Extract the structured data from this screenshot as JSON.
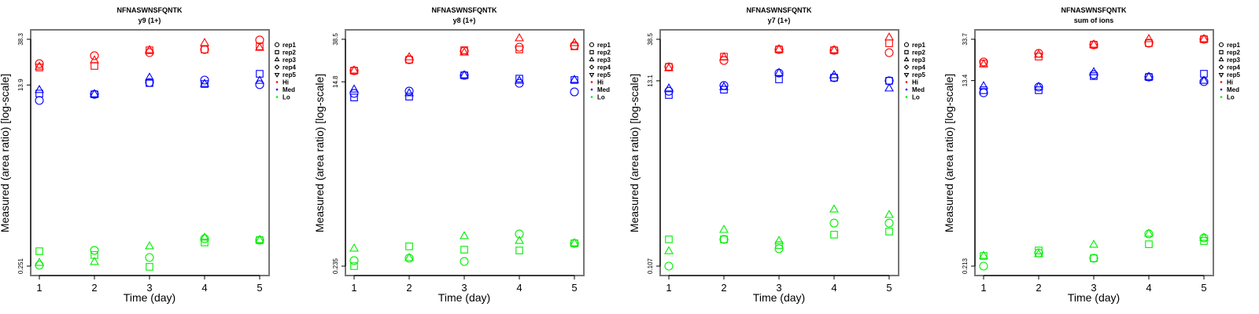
{
  "colors": {
    "Hi": "#ff0000",
    "Med": "#0000ff",
    "Lo": "#00ee00",
    "frame": "#777777"
  },
  "legend": {
    "reps": [
      {
        "label": "rep1",
        "shape": "circle"
      },
      {
        "label": "rep2",
        "shape": "square"
      },
      {
        "label": "rep3",
        "shape": "triangle-up"
      },
      {
        "label": "rep4",
        "shape": "diamond"
      },
      {
        "label": "rep5",
        "shape": "triangle-down"
      }
    ],
    "groups": [
      "Hi",
      "Med",
      "Lo"
    ]
  },
  "chart_data": [
    {
      "type": "scatter",
      "title": "NFNASWNSFQNTK",
      "subtitle": "y9 (1+)",
      "xlabel": "Time (day)",
      "ylabel": "Measured (area ratio) [log-scale]",
      "x": [
        1,
        2,
        3,
        4,
        5
      ],
      "xticks": [
        "1",
        "2",
        "3",
        "4",
        "5"
      ],
      "yscale": "log",
      "ylim": [
        0.251,
        38.3
      ],
      "yticks": [
        "0.251",
        "13.9",
        "38.3"
      ],
      "ytick_values": [
        0.251,
        13.9,
        38.3
      ],
      "legend_position": "right",
      "series": [
        {
          "group": "Hi",
          "rep": "rep1",
          "values": [
            22.3,
            26.6,
            28.5,
            30.5,
            37.7
          ]
        },
        {
          "group": "Hi",
          "rep": "rep2",
          "values": [
            20.5,
            21.2,
            30.0,
            30.5,
            32.7
          ]
        },
        {
          "group": "Hi",
          "rep": "rep3",
          "values": [
            20.8,
            23.9,
            30.0,
            35.1,
            31.6
          ]
        },
        {
          "group": "Med",
          "rep": "rep1",
          "values": [
            9.86,
            11.3,
            14.7,
            15.5,
            14.0
          ]
        },
        {
          "group": "Med",
          "rep": "rep2",
          "values": [
            11.5,
            11.3,
            14.5,
            14.2,
            17.8
          ]
        },
        {
          "group": "Med",
          "rep": "rep3",
          "values": [
            12.4,
            11.3,
            16.3,
            14.2,
            15.2
          ]
        },
        {
          "group": "Lo",
          "rep": "rep1",
          "values": [
            0.256,
            0.356,
            0.304,
            0.461,
            0.446
          ]
        },
        {
          "group": "Lo",
          "rep": "rep2",
          "values": [
            0.349,
            0.321,
            0.247,
            0.424,
            0.446
          ]
        },
        {
          "group": "Lo",
          "rep": "rep3",
          "values": [
            0.269,
            0.274,
            0.388,
            0.47,
            0.446
          ]
        }
      ]
    },
    {
      "type": "scatter",
      "title": "NFNASWNSFQNTK",
      "subtitle": "y8 (1+)",
      "xlabel": "Time (day)",
      "ylabel": "Measured (area ratio) [log-scale]",
      "x": [
        1,
        2,
        3,
        4,
        5
      ],
      "xticks": [
        "1",
        "2",
        "3",
        "4",
        "5"
      ],
      "yscale": "log",
      "ylim": [
        0.235,
        38.5
      ],
      "yticks": [
        "0.235",
        "14.8",
        "38.5"
      ],
      "ytick_values": [
        0.235,
        14.8,
        38.5
      ],
      "legend_position": "right",
      "series": [
        {
          "group": "Hi",
          "rep": "rep1",
          "values": [
            19.0,
            24.3,
            29.5,
            32.2,
            33.4
          ]
        },
        {
          "group": "Hi",
          "rep": "rep2",
          "values": [
            19.0,
            24.3,
            30.1,
            30.6,
            32.8
          ]
        },
        {
          "group": "Hi",
          "rep": "rep3",
          "values": [
            19.0,
            25.6,
            28.5,
            39.2,
            35.2
          ]
        },
        {
          "group": "Med",
          "rep": "rep1",
          "values": [
            11.4,
            12.0,
            17.1,
            14.3,
            11.8
          ]
        },
        {
          "group": "Med",
          "rep": "rep2",
          "values": [
            10.4,
            10.6,
            17.1,
            15.9,
            15.4
          ]
        },
        {
          "group": "Med",
          "rep": "rep3",
          "values": [
            12.4,
            11.4,
            17.1,
            15.1,
            15.4
          ]
        },
        {
          "group": "Lo",
          "rep": "rep1",
          "values": [
            0.266,
            0.281,
            0.261,
            0.484,
            0.392
          ]
        },
        {
          "group": "Lo",
          "rep": "rep2",
          "values": [
            0.235,
            0.366,
            0.34,
            0.334,
            0.392
          ]
        },
        {
          "group": "Lo",
          "rep": "rep3",
          "values": [
            0.347,
            0.281,
            0.459,
            0.413,
            0.392
          ]
        }
      ]
    },
    {
      "type": "scatter",
      "title": "NFNASWNSFQNTK",
      "subtitle": "y7 (1+)",
      "xlabel": "Time (day)",
      "ylabel": "Measured (area ratio) [log-scale]",
      "x": [
        1,
        2,
        3,
        4,
        5
      ],
      "xticks": [
        "1",
        "2",
        "3",
        "4",
        "5"
      ],
      "yscale": "log",
      "ylim": [
        0.107,
        38.5
      ],
      "yticks": [
        "0.107",
        "13.1",
        "38.5"
      ],
      "ytick_values": [
        0.107,
        13.1,
        38.5
      ],
      "legend_position": "right",
      "series": [
        {
          "group": "Hi",
          "rep": "rep1",
          "values": [
            18.8,
            22.2,
            29.5,
            28.9,
            27.2
          ]
        },
        {
          "group": "Hi",
          "rep": "rep2",
          "values": [
            18.8,
            24.5,
            29.5,
            28.9,
            34.7
          ]
        },
        {
          "group": "Hi",
          "rep": "rep3",
          "values": [
            18.1,
            24.1,
            29.5,
            28.9,
            40.1
          ]
        },
        {
          "group": "Med",
          "rep": "rep1",
          "values": [
            10.0,
            11.6,
            16.0,
            14.2,
            13.1
          ]
        },
        {
          "group": "Med",
          "rep": "rep2",
          "values": [
            9.06,
            10.4,
            13.6,
            14.2,
            13.1
          ]
        },
        {
          "group": "Med",
          "rep": "rep3",
          "values": [
            10.7,
            11.1,
            16.0,
            15.1,
            10.7
          ]
        },
        {
          "group": "Lo",
          "rep": "rep1",
          "values": [
            0.107,
            0.214,
            0.168,
            0.327,
            0.327
          ]
        },
        {
          "group": "Lo",
          "rep": "rep2",
          "values": [
            0.214,
            0.214,
            0.185,
            0.242,
            0.262
          ]
        },
        {
          "group": "Lo",
          "rep": "rep3",
          "values": [
            0.157,
            0.273,
            0.205,
            0.463,
            0.402
          ]
        }
      ]
    },
    {
      "type": "scatter",
      "title": "NFNASWNSFQNTK",
      "subtitle": "sum of ions",
      "xlabel": "Time (day)",
      "ylabel": "Measured (area ratio) [log-scale]",
      "x": [
        1,
        2,
        3,
        4,
        5
      ],
      "xticks": [
        "1",
        "2",
        "3",
        "4",
        "5"
      ],
      "yscale": "log",
      "ylim": [
        0.213,
        33.7
      ],
      "yticks": [
        "0.213",
        "13.4",
        "33.7"
      ],
      "ytick_values": [
        0.213,
        13.4,
        33.7
      ],
      "legend_position": "right",
      "series": [
        {
          "group": "Hi",
          "rep": "rep1",
          "values": [
            20.3,
            24.6,
            29.8,
            30.9,
            33.7
          ]
        },
        {
          "group": "Hi",
          "rep": "rep2",
          "values": [
            19.6,
            22.9,
            29.8,
            30.9,
            33.7
          ]
        },
        {
          "group": "Hi",
          "rep": "rep3",
          "values": [
            19.2,
            23.8,
            29.8,
            33.7,
            33.7
          ]
        },
        {
          "group": "Med",
          "rep": "rep1",
          "values": [
            10.2,
            11.6,
            15.3,
            14.5,
            13.1
          ]
        },
        {
          "group": "Med",
          "rep": "rep2",
          "values": [
            10.8,
            10.8,
            14.8,
            14.5,
            15.6
          ]
        },
        {
          "group": "Med",
          "rep": "rep3",
          "values": [
            11.8,
            11.6,
            16.1,
            14.5,
            13.3
          ]
        },
        {
          "group": "Lo",
          "rep": "rep1",
          "values": [
            0.213,
            0.286,
            0.254,
            0.437,
            0.4
          ]
        },
        {
          "group": "Lo",
          "rep": "rep2",
          "values": [
            0.267,
            0.302,
            0.254,
            0.347,
            0.373
          ]
        },
        {
          "group": "Lo",
          "rep": "rep3",
          "values": [
            0.267,
            0.277,
            0.342,
            0.437,
            0.4
          ]
        }
      ]
    }
  ]
}
